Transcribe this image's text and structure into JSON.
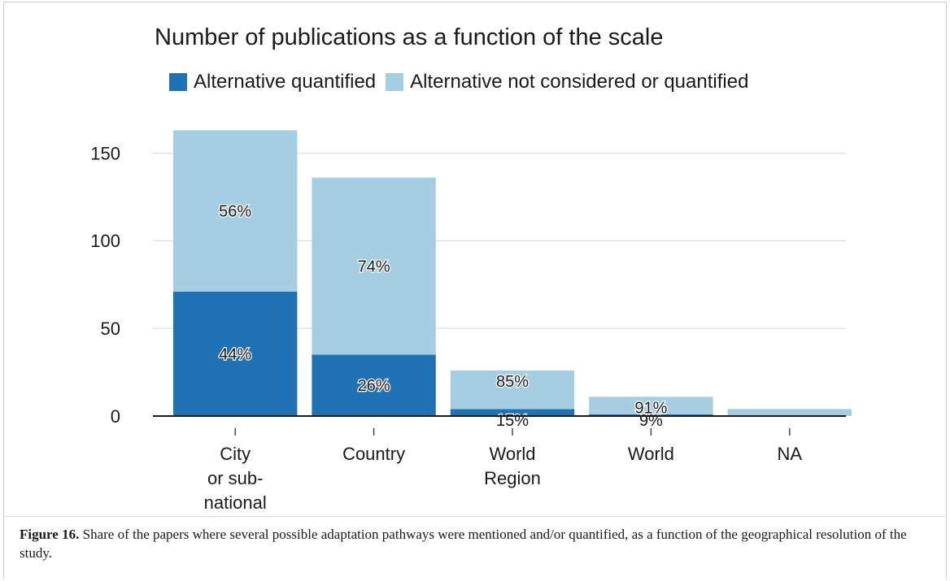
{
  "figure": {
    "label": "Figure 16.",
    "caption": " Share of the papers where several possible adaptation pathways were mentioned and/or quantified, as a function of the geographical resolution of the study."
  },
  "chart_data": {
    "type": "bar",
    "stacked": true,
    "title": "Number of publications as a function of the scale",
    "legend_position": "top",
    "categories": [
      [
        "City",
        "or sub-",
        "national"
      ],
      [
        "Country"
      ],
      [
        "World",
        "Region"
      ],
      [
        "World"
      ],
      [
        "NA"
      ]
    ],
    "series": [
      {
        "name": "Alternative quantified",
        "color": "#1f73b4",
        "values": [
          71,
          35,
          4,
          1,
          0
        ],
        "labels": [
          "44%",
          "26%",
          "15%",
          "9%",
          ""
        ]
      },
      {
        "name": "Alternative not considered or quantified",
        "color": "#a6cee3",
        "values": [
          92,
          101,
          22,
          10,
          4
        ],
        "labels": [
          "56%",
          "74%",
          "85%",
          "91%",
          ""
        ]
      }
    ],
    "y_ticks": [
      0,
      50,
      100,
      150
    ],
    "ylim": [
      0,
      165
    ],
    "grid": true
  }
}
